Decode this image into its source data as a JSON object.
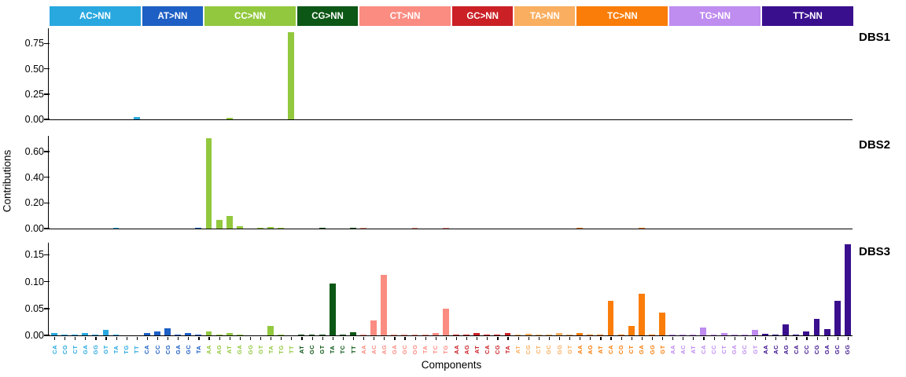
{
  "chart_data": {
    "type": "bar",
    "title": "",
    "xlabel": "Components",
    "ylabel": "Contributions",
    "grid": false,
    "legend_position": "top",
    "panel_label_position": "right",
    "groups": [
      {
        "label": "AC>NN",
        "color": "#29A8E0",
        "categories": [
          "CA",
          "CG",
          "CT",
          "GA",
          "GG",
          "GT",
          "TA",
          "TG",
          "TT"
        ]
      },
      {
        "label": "AT>NN",
        "color": "#1D5FC4",
        "categories": [
          "CA",
          "CC",
          "CG",
          "GA",
          "GC",
          "TA"
        ]
      },
      {
        "label": "CC>NN",
        "color": "#92C83E",
        "categories": [
          "AA",
          "AG",
          "AT",
          "GA",
          "GG",
          "GT",
          "TA",
          "TG",
          "TT"
        ]
      },
      {
        "label": "CG>NN",
        "color": "#0C5715",
        "categories": [
          "AT",
          "GC",
          "GT",
          "TA",
          "TC",
          "TT"
        ]
      },
      {
        "label": "CT>NN",
        "color": "#FB8C81",
        "categories": [
          "AA",
          "AC",
          "AG",
          "GA",
          "GC",
          "GG",
          "TA",
          "TC",
          "TG"
        ]
      },
      {
        "label": "GC>NN",
        "color": "#CB2026",
        "categories": [
          "AA",
          "AG",
          "AT",
          "CA",
          "CG",
          "TA"
        ]
      },
      {
        "label": "TA>NN",
        "color": "#FAAE5F",
        "categories": [
          "AT",
          "CG",
          "CT",
          "GC",
          "GG",
          "GT"
        ]
      },
      {
        "label": "TC>NN",
        "color": "#FA7D09",
        "categories": [
          "AA",
          "AG",
          "AT",
          "CA",
          "CG",
          "CT",
          "GA",
          "GG",
          "GT"
        ]
      },
      {
        "label": "TG>NN",
        "color": "#BF8CEF",
        "categories": [
          "AA",
          "AC",
          "AT",
          "CA",
          "CC",
          "CT",
          "GA",
          "GC",
          "GT"
        ]
      },
      {
        "label": "TT>NN",
        "color": "#3A0F8E",
        "categories": [
          "AA",
          "AC",
          "AG",
          "CA",
          "CC",
          "CG",
          "GA",
          "GC",
          "GG"
        ]
      }
    ],
    "panels": [
      {
        "name": "DBS1",
        "ytick_labels": [
          "0.00",
          "0.25",
          "0.50",
          "0.75"
        ],
        "yticks": [
          0,
          0.25,
          0.5,
          0.75
        ],
        "ymax": 0.9,
        "values_by_group": [
          [
            0,
            0,
            0,
            0,
            0,
            0,
            0,
            0,
            0.02
          ],
          [
            0,
            0,
            0,
            0,
            0,
            0
          ],
          [
            0,
            0,
            0.012,
            0,
            0,
            0,
            0,
            0,
            0.86
          ],
          [
            0,
            0,
            0,
            0,
            0,
            0
          ],
          [
            0,
            0,
            0,
            0,
            0,
            0,
            0,
            0,
            0
          ],
          [
            0,
            0,
            0,
            0,
            0,
            0
          ],
          [
            0,
            0,
            0,
            0,
            0,
            0
          ],
          [
            0,
            0,
            0,
            0,
            0,
            0,
            0,
            0,
            0
          ],
          [
            0,
            0,
            0,
            0,
            0,
            0,
            0,
            0,
            0
          ],
          [
            0,
            0,
            0,
            0,
            0,
            0,
            0,
            0,
            0
          ]
        ]
      },
      {
        "name": "DBS2",
        "ytick_labels": [
          "0.00",
          "0.20",
          "0.40",
          "0.60"
        ],
        "yticks": [
          0,
          0.2,
          0.4,
          0.6
        ],
        "ymax": 0.722,
        "values_by_group": [
          [
            0,
            0,
            0,
            0,
            0,
            0,
            0.003,
            0,
            0
          ],
          [
            0,
            0,
            0,
            0,
            0,
            0.002
          ],
          [
            0.705,
            0.067,
            0.098,
            0.018,
            0,
            0.002,
            0.012,
            0.002,
            0
          ],
          [
            0,
            0,
            0.002,
            0,
            0,
            0.002
          ],
          [
            0.002,
            0,
            0,
            0,
            0,
            0.002,
            0,
            0,
            0.002
          ],
          [
            0,
            0,
            0,
            0,
            0,
            0
          ],
          [
            0,
            0,
            0,
            0,
            0,
            0
          ],
          [
            0.002,
            0,
            0,
            0,
            0,
            0,
            0.002,
            0,
            0
          ],
          [
            0,
            0,
            0,
            0,
            0,
            0,
            0,
            0,
            0
          ],
          [
            0,
            0,
            0,
            0,
            0,
            0,
            0,
            0,
            0
          ]
        ]
      },
      {
        "name": "DBS3",
        "ytick_labels": [
          "0.00",
          "0.05",
          "0.10",
          "0.15"
        ],
        "yticks": [
          0,
          0.05,
          0.1,
          0.15
        ],
        "ymax": 0.1725,
        "values_by_group": [
          [
            0.005,
            0.001,
            0.002,
            0.005,
            0.001,
            0.01,
            0.001,
            0,
            0
          ],
          [
            0.005,
            0.008,
            0.013,
            0.001,
            0.004,
            0.001
          ],
          [
            0.008,
            0.001,
            0.005,
            0.001,
            0,
            0,
            0.018,
            0.001,
            0
          ],
          [
            0.001,
            0.001,
            0.001,
            0.096,
            0.001,
            0.006
          ],
          [
            0.001,
            0.028,
            0.112,
            0.001,
            0.001,
            0.001,
            0.002,
            0.005,
            0.05
          ],
          [
            0.001,
            0.002,
            0.004,
            0.001,
            0.001,
            0.004
          ],
          [
            0.001,
            0.003,
            0.001,
            0.001,
            0.004,
            0.001
          ],
          [
            0.005,
            0.001,
            0.001,
            0.065,
            0.001,
            0.018,
            0.077,
            0.002,
            0.043
          ],
          [
            0.001,
            0.001,
            0.001,
            0.015,
            0.001,
            0.005,
            0.001,
            0.001,
            0.01
          ],
          [
            0.003,
            0.002,
            0.021,
            0.001,
            0.008,
            0.03,
            0.012,
            0.065,
            0.17
          ]
        ]
      }
    ]
  }
}
